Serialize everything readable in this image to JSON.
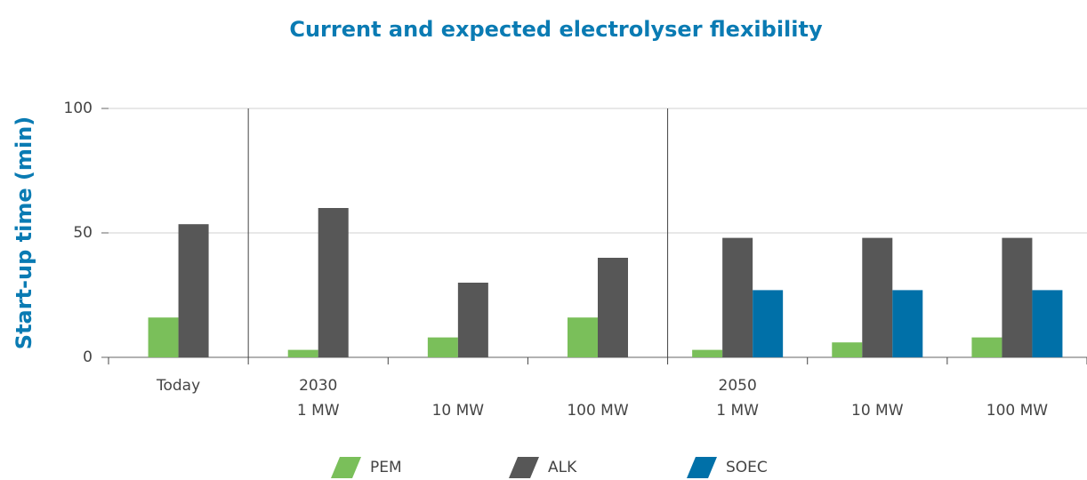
{
  "chart_data": {
    "type": "bar",
    "title": "Current and expected electrolyser flexibility",
    "y_label": "Start-up time (min)",
    "categories": [
      [
        "Today"
      ],
      [
        "2030",
        "1 MW"
      ],
      [
        "10 MW"
      ],
      [
        "100 MW"
      ],
      [
        "2050",
        "1 MW"
      ],
      [
        "10 MW"
      ],
      [
        "100 MW"
      ]
    ],
    "series": [
      {
        "name": "PEM",
        "color": "#7abf5a",
        "values": [
          16,
          3,
          8,
          16,
          3,
          6,
          8
        ]
      },
      {
        "name": "ALK",
        "color": "#575757",
        "values": [
          53.5,
          60,
          30,
          40,
          48,
          48,
          48
        ]
      },
      {
        "name": "SOEC",
        "color": "#0070a8",
        "values": [
          null,
          null,
          null,
          null,
          27,
          27,
          27
        ]
      }
    ],
    "ylim": [
      0,
      100
    ],
    "yticks": [
      0,
      50,
      100
    ],
    "grid": true,
    "legend": "bottom"
  }
}
